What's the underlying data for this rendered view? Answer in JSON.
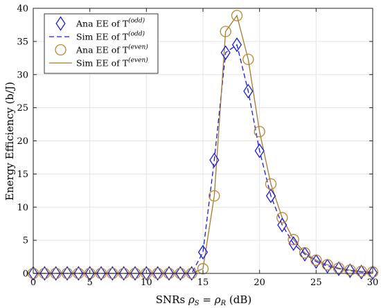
{
  "chart_data": {
    "type": "line",
    "xlabel": {
      "prefix": "SNRs ",
      "sym1": "ρ",
      "sub1": "S",
      "mid": " = ",
      "sym2": "ρ",
      "sub2": "R",
      "suffix": " (dB)"
    },
    "ylabel": "Energy Efficiency (b/J)",
    "xlim": [
      0,
      30
    ],
    "ylim": [
      0,
      40
    ],
    "xticks": [
      "0",
      "5",
      "10",
      "15",
      "20",
      "25",
      "30"
    ],
    "yticks": [
      "0",
      "5",
      "10",
      "15",
      "20",
      "25",
      "30",
      "35",
      "40"
    ],
    "grid": true,
    "legend_position": "top-left",
    "x": [
      0,
      1,
      2,
      3,
      4,
      5,
      6,
      7,
      8,
      9,
      10,
      11,
      12,
      13,
      14,
      15,
      16,
      17,
      18,
      19,
      20,
      21,
      22,
      23,
      24,
      25,
      26,
      27,
      28,
      29,
      30
    ],
    "series": [
      {
        "name": "Ana EE of T",
        "name_sup": "(odd)",
        "marker": "diamond",
        "color": "#1a1adc",
        "values": [
          0,
          0,
          0,
          0,
          0,
          0,
          0,
          0,
          0,
          0,
          0,
          0,
          0,
          0,
          0,
          3.2,
          17.1,
          33.3,
          34.5,
          27.5,
          18.5,
          11.7,
          7.3,
          4.5,
          2.9,
          1.8,
          1.1,
          0.7,
          0.4,
          0.2,
          0.1
        ]
      },
      {
        "name": "Sim EE of T",
        "name_sup": "(odd)",
        "line": "dashed",
        "color": "#1a1adc",
        "values": [
          0,
          0,
          0,
          0,
          0,
          0,
          0,
          0,
          0,
          0,
          0,
          0,
          0,
          0,
          0,
          3.2,
          17.1,
          33.3,
          34.5,
          27.5,
          18.5,
          11.7,
          7.3,
          4.5,
          2.9,
          1.8,
          1.1,
          0.7,
          0.4,
          0.2,
          0.1
        ]
      },
      {
        "name": "Ana EE of T",
        "name_sup": "(even)",
        "marker": "circle",
        "color": "#b8862e",
        "values": [
          0,
          0,
          0,
          0,
          0,
          0,
          0,
          0,
          0,
          0,
          0,
          0,
          0,
          0,
          0,
          0.7,
          11.7,
          36.5,
          38.9,
          32.3,
          21.4,
          13.5,
          8.4,
          5.1,
          3.1,
          2.0,
          1.3,
          0.8,
          0.5,
          0.3,
          0.2
        ]
      },
      {
        "name": "Sim EE of T",
        "name_sup": "(even)",
        "line": "solid",
        "color": "#a8782a",
        "values": [
          0,
          0,
          0,
          0,
          0,
          0,
          0,
          0,
          0,
          0,
          0,
          0,
          0,
          0,
          0,
          0.7,
          11.7,
          36.5,
          38.9,
          32.3,
          21.4,
          13.5,
          8.4,
          5.1,
          3.1,
          2.0,
          1.3,
          0.8,
          0.5,
          0.3,
          0.2
        ]
      }
    ]
  }
}
